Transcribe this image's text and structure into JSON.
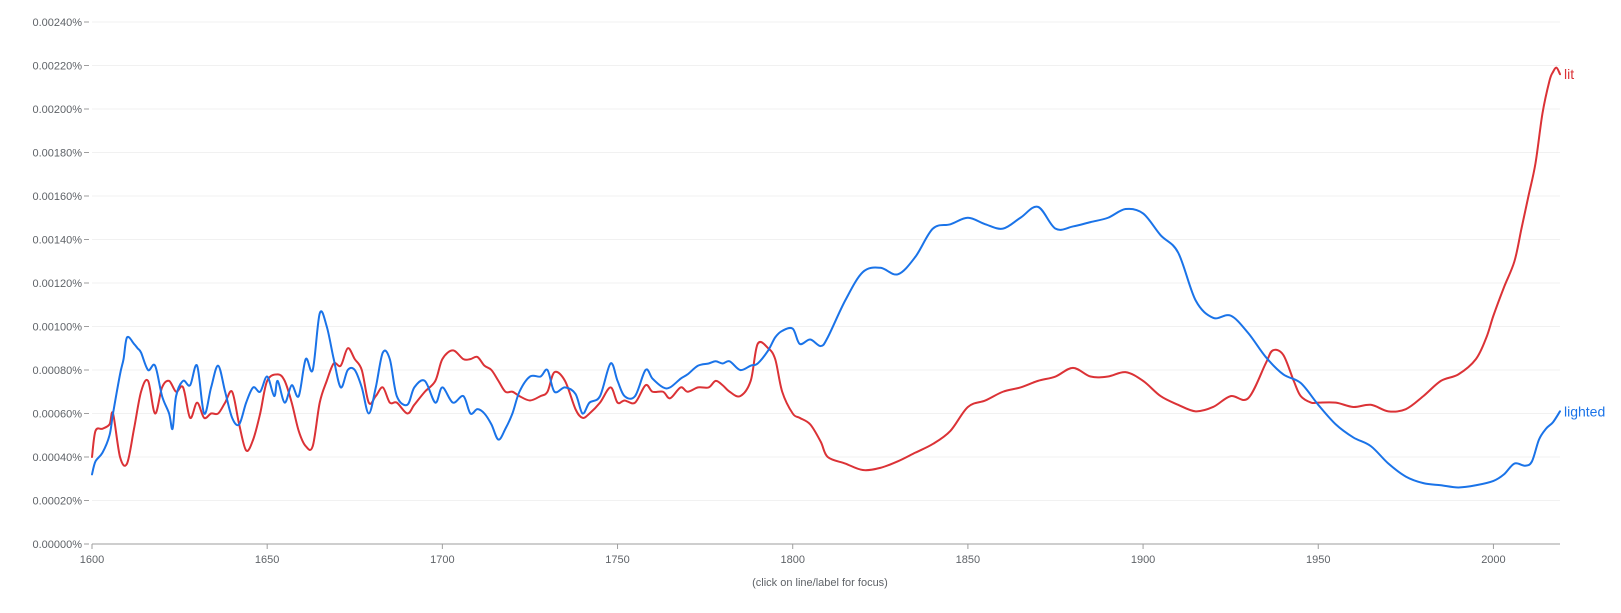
{
  "chart_data": {
    "type": "line",
    "title": "",
    "xlabel": "",
    "ylabel": "",
    "xlim": [
      1600,
      2019
    ],
    "ylim": [
      0,
      0.0024
    ],
    "y_ticks": [
      "0.00000%",
      "0.00020%",
      "0.00040%",
      "0.00060%",
      "0.00080%",
      "0.00100%",
      "0.00120%",
      "0.00140%",
      "0.00160%",
      "0.00180%",
      "0.00200%",
      "0.00220%",
      "0.00240%"
    ],
    "x_ticks": [
      "1600",
      "1650",
      "1700",
      "1750",
      "1800",
      "1850",
      "1900",
      "1950",
      "2000"
    ],
    "grid": true,
    "legend": "end-of-line labels",
    "note": "(click on line/label for focus)",
    "series": [
      {
        "name": "lit",
        "color": "#db3236",
        "x": [
          1600,
          1601,
          1603,
          1605,
          1606,
          1608,
          1610,
          1612,
          1614,
          1616,
          1618,
          1620,
          1622,
          1624,
          1626,
          1628,
          1630,
          1632,
          1634,
          1636,
          1638,
          1640,
          1642,
          1644,
          1646,
          1648,
          1650,
          1653,
          1655,
          1657,
          1659,
          1661,
          1663,
          1665,
          1667,
          1669,
          1671,
          1673,
          1675,
          1677,
          1679,
          1681,
          1683,
          1685,
          1687,
          1690,
          1692,
          1695,
          1698,
          1700,
          1703,
          1706,
          1708,
          1710,
          1712,
          1714,
          1716,
          1718,
          1720,
          1722,
          1725,
          1728,
          1730,
          1732,
          1735,
          1738,
          1740,
          1742,
          1745,
          1748,
          1750,
          1752,
          1755,
          1758,
          1760,
          1763,
          1765,
          1768,
          1770,
          1773,
          1776,
          1778,
          1780,
          1782,
          1785,
          1788,
          1790,
          1793,
          1795,
          1797,
          1800,
          1802,
          1805,
          1808,
          1810,
          1815,
          1820,
          1825,
          1830,
          1835,
          1840,
          1845,
          1850,
          1855,
          1860,
          1865,
          1870,
          1875,
          1880,
          1885,
          1890,
          1895,
          1900,
          1905,
          1910,
          1915,
          1920,
          1925,
          1930,
          1935,
          1937,
          1940,
          1943,
          1945,
          1948,
          1950,
          1955,
          1960,
          1965,
          1970,
          1975,
          1980,
          1985,
          1990,
          1995,
          1998,
          2000,
          2003,
          2006,
          2008,
          2010,
          2012,
          2014,
          2016,
          2017,
          2018,
          2019
        ],
        "values": [
          0.0004,
          0.00052,
          0.00053,
          0.00055,
          0.0006,
          0.0004,
          0.00037,
          0.00053,
          0.0007,
          0.00075,
          0.0006,
          0.00072,
          0.00075,
          0.0007,
          0.00072,
          0.00058,
          0.00065,
          0.00058,
          0.0006,
          0.0006,
          0.00065,
          0.0007,
          0.00055,
          0.00043,
          0.00048,
          0.0006,
          0.00075,
          0.00078,
          0.00075,
          0.00065,
          0.00052,
          0.00045,
          0.00045,
          0.00065,
          0.00075,
          0.00083,
          0.00082,
          0.0009,
          0.00085,
          0.0008,
          0.00065,
          0.00068,
          0.00072,
          0.00065,
          0.00065,
          0.0006,
          0.00064,
          0.0007,
          0.00075,
          0.00085,
          0.00089,
          0.00085,
          0.00085,
          0.00086,
          0.00082,
          0.0008,
          0.00075,
          0.0007,
          0.0007,
          0.00068,
          0.00066,
          0.00068,
          0.0007,
          0.00079,
          0.00075,
          0.00062,
          0.00058,
          0.0006,
          0.00065,
          0.00072,
          0.00065,
          0.00066,
          0.00065,
          0.00073,
          0.0007,
          0.0007,
          0.00067,
          0.00072,
          0.0007,
          0.00072,
          0.00072,
          0.00075,
          0.00073,
          0.0007,
          0.00068,
          0.00075,
          0.00092,
          0.0009,
          0.00085,
          0.0007,
          0.0006,
          0.00058,
          0.00055,
          0.00047,
          0.0004,
          0.00037,
          0.00034,
          0.00035,
          0.00038,
          0.00042,
          0.00046,
          0.00052,
          0.00063,
          0.00066,
          0.0007,
          0.00072,
          0.00075,
          0.00077,
          0.00081,
          0.00077,
          0.00077,
          0.00079,
          0.00075,
          0.00068,
          0.00064,
          0.00061,
          0.00063,
          0.00068,
          0.00067,
          0.00083,
          0.00089,
          0.00087,
          0.00075,
          0.00068,
          0.00065,
          0.00065,
          0.00065,
          0.00063,
          0.00064,
          0.00061,
          0.00062,
          0.00068,
          0.00075,
          0.00078,
          0.00085,
          0.00095,
          0.00105,
          0.00118,
          0.0013,
          0.00145,
          0.0016,
          0.00175,
          0.00198,
          0.00213,
          0.00217,
          0.00219,
          0.00216
        ],
        "label": "lit"
      },
      {
        "name": "lighted",
        "color": "#1a73e8",
        "x": [
          1600,
          1601,
          1603,
          1605,
          1606,
          1608,
          1609,
          1610,
          1612,
          1613,
          1614,
          1616,
          1618,
          1620,
          1622,
          1623,
          1624,
          1626,
          1628,
          1630,
          1632,
          1634,
          1636,
          1638,
          1640,
          1642,
          1644,
          1646,
          1648,
          1650,
          1652,
          1653,
          1655,
          1657,
          1659,
          1661,
          1663,
          1665,
          1667,
          1669,
          1671,
          1673,
          1675,
          1677,
          1679,
          1681,
          1683,
          1685,
          1687,
          1690,
          1692,
          1695,
          1698,
          1700,
          1703,
          1706,
          1708,
          1710,
          1712,
          1714,
          1716,
          1718,
          1720,
          1722,
          1725,
          1728,
          1730,
          1732,
          1735,
          1738,
          1740,
          1742,
          1745,
          1748,
          1750,
          1752,
          1755,
          1758,
          1760,
          1763,
          1765,
          1768,
          1770,
          1773,
          1776,
          1778,
          1780,
          1782,
          1785,
          1788,
          1790,
          1793,
          1795,
          1797,
          1800,
          1802,
          1805,
          1808,
          1810,
          1815,
          1820,
          1825,
          1830,
          1835,
          1840,
          1845,
          1850,
          1855,
          1860,
          1865,
          1870,
          1875,
          1880,
          1885,
          1890,
          1895,
          1900,
          1905,
          1910,
          1915,
          1920,
          1925,
          1930,
          1935,
          1940,
          1945,
          1950,
          1955,
          1960,
          1965,
          1970,
          1975,
          1980,
          1985,
          1990,
          1995,
          2000,
          2003,
          2006,
          2009,
          2011,
          2013,
          2015,
          2017,
          2019
        ],
        "values": [
          0.00032,
          0.00038,
          0.00042,
          0.0005,
          0.0006,
          0.00078,
          0.00085,
          0.00095,
          0.00092,
          0.0009,
          0.00088,
          0.0008,
          0.00082,
          0.00068,
          0.0006,
          0.00053,
          0.00068,
          0.00075,
          0.00073,
          0.00082,
          0.0006,
          0.00072,
          0.00082,
          0.0007,
          0.00058,
          0.00055,
          0.00065,
          0.00072,
          0.0007,
          0.00077,
          0.00068,
          0.00075,
          0.00065,
          0.00073,
          0.00068,
          0.00085,
          0.0008,
          0.00106,
          0.001,
          0.00085,
          0.00072,
          0.0008,
          0.0008,
          0.00072,
          0.0006,
          0.00072,
          0.00088,
          0.00085,
          0.00068,
          0.00064,
          0.00072,
          0.00075,
          0.00065,
          0.00072,
          0.00065,
          0.00068,
          0.0006,
          0.00062,
          0.0006,
          0.00055,
          0.00048,
          0.00053,
          0.0006,
          0.0007,
          0.00077,
          0.00077,
          0.0008,
          0.0007,
          0.00072,
          0.00069,
          0.0006,
          0.00065,
          0.00068,
          0.00083,
          0.00075,
          0.00068,
          0.00068,
          0.0008,
          0.00076,
          0.00072,
          0.00072,
          0.00076,
          0.00078,
          0.00082,
          0.00083,
          0.00084,
          0.00083,
          0.00084,
          0.0008,
          0.00082,
          0.00083,
          0.00089,
          0.00095,
          0.00098,
          0.00099,
          0.00092,
          0.00094,
          0.00091,
          0.00095,
          0.00112,
          0.00125,
          0.00127,
          0.00124,
          0.00132,
          0.00145,
          0.00147,
          0.0015,
          0.00147,
          0.00145,
          0.0015,
          0.00155,
          0.00145,
          0.00146,
          0.00148,
          0.0015,
          0.00154,
          0.00152,
          0.00142,
          0.00134,
          0.00112,
          0.00104,
          0.00105,
          0.00097,
          0.00086,
          0.00078,
          0.00074,
          0.00064,
          0.00055,
          0.00049,
          0.00045,
          0.00037,
          0.00031,
          0.00028,
          0.00027,
          0.00026,
          0.00027,
          0.00029,
          0.00032,
          0.00037,
          0.00036,
          0.00038,
          0.00048,
          0.00053,
          0.00056,
          0.00061
        ],
        "label": "lighted"
      }
    ]
  }
}
